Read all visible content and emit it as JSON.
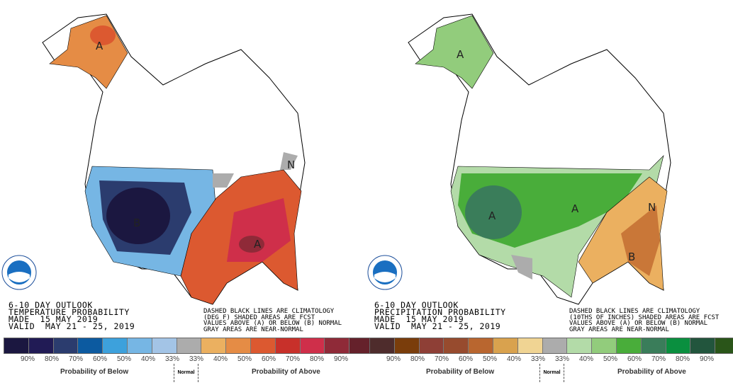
{
  "temperature": {
    "header": [
      "6-10 DAY OUTLOOK",
      "TEMPERATURE PROBABILITY",
      "MADE  15 MAY 2019",
      "VALID  MAY 21 - 25, 2019"
    ],
    "note": [
      "DASHED BLACK LINES ARE CLIMATOLOGY",
      "(DEG F) SHADED AREAS ARE FCST",
      "VALUES ABOVE (A) OR BELOW (B) NORMAL",
      "GRAY AREAS ARE NEAR-NORMAL"
    ],
    "legend_colors": [
      "#1b1740",
      "#211b55",
      "#2b3c6e",
      "#0c5aa0",
      "#3da1dc",
      "#76b6e4",
      "#a3c4e6",
      "#acacac",
      "#ebb060",
      "#e58c45",
      "#dc5930",
      "#c8302a",
      "#cf2f4a",
      "#8f2a38",
      "#65212b"
    ],
    "ticks": [
      "90%",
      "80%",
      "70%",
      "60%",
      "50%",
      "40%",
      "33%",
      "33%",
      "40%",
      "50%",
      "60%",
      "70%",
      "80%",
      "90%"
    ],
    "below_label": "Probability of Below",
    "normal_label": "Normal",
    "above_label": "Probability of Above",
    "map_labels": {
      "alaska": "A",
      "west": "B",
      "southeast": "A",
      "northeast": "N"
    }
  },
  "precipitation": {
    "header": [
      "6-10 DAY OUTLOOK",
      "PRECIPITATION PROBABILITY",
      "MADE  15 MAY 2019",
      "VALID  MAY 21 - 25, 2019"
    ],
    "note": [
      "DASHED BLACK LINES ARE CLIMATOLOGY",
      "(10THS OF INCHES) SHADED AREAS ARE FCST",
      "VALUES ABOVE (A) OR BELOW (B) NORMAL",
      "GRAY AREAS ARE NEAR-NORMAL"
    ],
    "legend_colors": [
      "#4e2c2c",
      "#7a3d0b",
      "#8e3f36",
      "#974b2e",
      "#b9662f",
      "#d9a24e",
      "#f0d493",
      "#acacac",
      "#b3dba8",
      "#92cc7c",
      "#49ad3a",
      "#3a7d5a",
      "#0a8f3f",
      "#22553d",
      "#2a5519"
    ],
    "ticks": [
      "90%",
      "80%",
      "70%",
      "60%",
      "50%",
      "40%",
      "33%",
      "33%",
      "40%",
      "50%",
      "60%",
      "70%",
      "80%",
      "90%"
    ],
    "below_label": "Probability of Below",
    "normal_label": "Normal",
    "above_label": "Probability of Above",
    "map_labels": {
      "alaska": "A",
      "west": "A",
      "midwest": "A",
      "southeast": "B",
      "northeast": "N"
    }
  },
  "logo_text": "NOAA"
}
